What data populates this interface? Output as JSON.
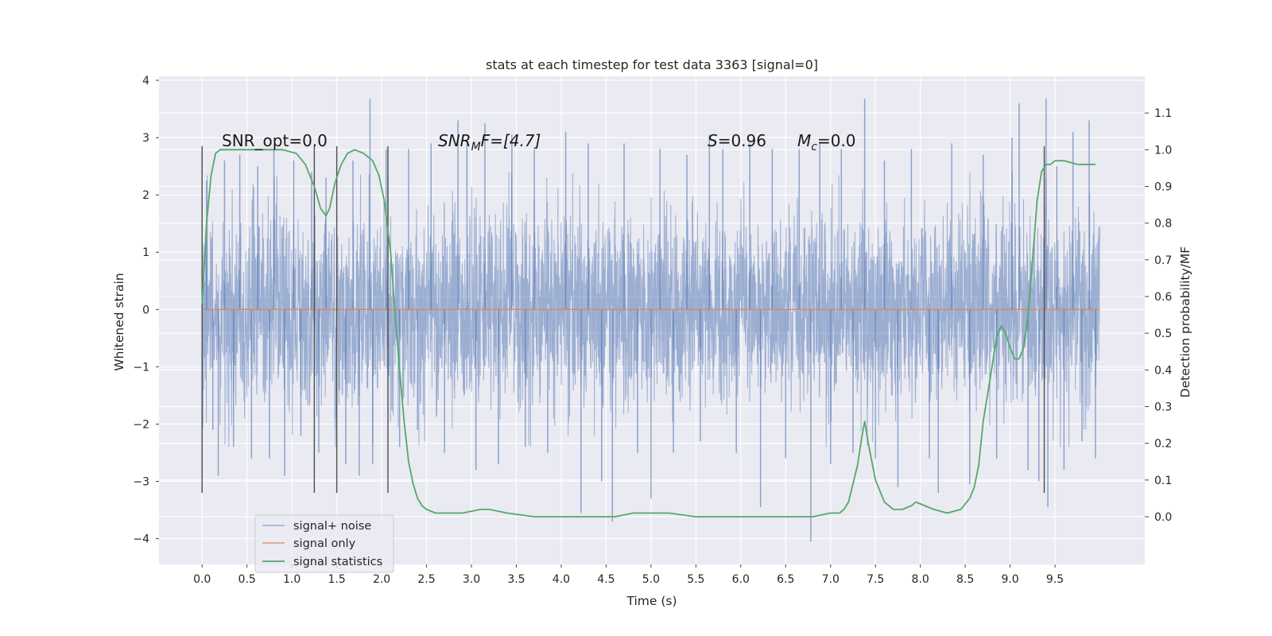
{
  "chart_data": {
    "type": "line",
    "title": "stats at each timestep for test data 3363 [signal=0]",
    "xlabel": "Time (s)",
    "ylabel": "Whitened strain",
    "y2label": "Detection probability/MF",
    "xlim": [
      -0.48,
      10.5
    ],
    "ylim": [
      -4.45,
      4.07
    ],
    "y2lim": [
      -0.13,
      1.2
    ],
    "x_ticks": [
      0.0,
      0.5,
      1.0,
      1.5,
      2.0,
      2.5,
      3.0,
      3.5,
      4.0,
      4.5,
      5.0,
      5.5,
      6.0,
      6.5,
      7.0,
      7.5,
      8.0,
      8.5,
      9.0,
      9.5
    ],
    "x_tick_labels": [
      "0.0",
      "0.5",
      "1.0",
      "1.5",
      "2.0",
      "2.5",
      "3.0",
      "3.5",
      "4.0",
      "4.5",
      "5.0",
      "5.5",
      "6.0",
      "6.5",
      "7.0",
      "7.5",
      "8.0",
      "8.5",
      "9.0",
      "9.5"
    ],
    "y_ticks": [
      -4,
      -3,
      -2,
      -1,
      0,
      1,
      2,
      3,
      4
    ],
    "y_tick_labels": [
      "−4",
      "−3",
      "−2",
      "−1",
      "0",
      "1",
      "2",
      "3",
      "4"
    ],
    "y2_ticks": [
      0.0,
      0.1,
      0.2,
      0.3,
      0.4,
      0.5,
      0.6,
      0.7,
      0.8,
      0.9,
      1.0,
      1.1
    ],
    "y2_tick_labels": [
      "0.0",
      "0.1",
      "0.2",
      "0.3",
      "0.4",
      "0.5",
      "0.6",
      "0.7",
      "0.8",
      "0.9",
      "1.0",
      "1.1"
    ],
    "grid": true,
    "legend_position": "lower-left",
    "annotations": {
      "snr_opt": "SNR_opt=0.0",
      "snr_mf": {
        "prefix": "SNR",
        "sub": "M",
        "suffix": "F=[4.7]"
      },
      "s_stat": {
        "sym": "S",
        "value": "=0.96"
      },
      "mc": {
        "sym": "M",
        "sub": "c",
        "value": "=0.0"
      }
    },
    "vertical_markers_x": [
      0.0,
      1.25,
      1.5,
      2.07,
      9.38
    ],
    "vertical_markers_ylim": [
      -3.2,
      2.85
    ],
    "series": [
      {
        "name": "signal+ noise",
        "color": "#4c72b0",
        "opacity": 0.5,
        "kind": "whitened-noise-trace",
        "axis": "left",
        "x_range": [
          0.0,
          10.0
        ],
        "typical_envelope": [
          -1.5,
          1.5
        ],
        "spikes": [
          {
            "x": 0.05,
            "y": 2.25
          },
          {
            "x": 0.12,
            "y": -2.1
          },
          {
            "x": 0.18,
            "y": -2.9
          },
          {
            "x": 0.25,
            "y": 2.6
          },
          {
            "x": 0.35,
            "y": -2.4
          },
          {
            "x": 0.42,
            "y": 2.7
          },
          {
            "x": 0.55,
            "y": -2.6
          },
          {
            "x": 0.62,
            "y": 2.5
          },
          {
            "x": 0.75,
            "y": -2.6
          },
          {
            "x": 0.8,
            "y": 2.8
          },
          {
            "x": 0.92,
            "y": -2.9
          },
          {
            "x": 1.02,
            "y": 2.6
          },
          {
            "x": 1.1,
            "y": -2.2
          },
          {
            "x": 1.22,
            "y": 2.4
          },
          {
            "x": 1.3,
            "y": -2.5
          },
          {
            "x": 1.38,
            "y": 2.3
          },
          {
            "x": 1.6,
            "y": -2.7
          },
          {
            "x": 1.68,
            "y": 2.6
          },
          {
            "x": 1.75,
            "y": -2.9
          },
          {
            "x": 1.87,
            "y": 3.68
          },
          {
            "x": 1.9,
            "y": -2.7
          },
          {
            "x": 2.05,
            "y": 2.8
          },
          {
            "x": 2.2,
            "y": -2.4
          },
          {
            "x": 2.3,
            "y": 2.8
          },
          {
            "x": 2.4,
            "y": -2.1
          },
          {
            "x": 2.55,
            "y": 2.9
          },
          {
            "x": 2.7,
            "y": -2.5
          },
          {
            "x": 2.85,
            "y": 3.3
          },
          {
            "x": 2.95,
            "y": 2.9
          },
          {
            "x": 3.05,
            "y": -2.8
          },
          {
            "x": 3.15,
            "y": 3.25
          },
          {
            "x": 3.3,
            "y": -2.7
          },
          {
            "x": 3.45,
            "y": 3.05
          },
          {
            "x": 3.6,
            "y": -2.4
          },
          {
            "x": 3.7,
            "y": 2.8
          },
          {
            "x": 3.85,
            "y": -2.5
          },
          {
            "x": 4.05,
            "y": 3.1
          },
          {
            "x": 4.22,
            "y": -3.55
          },
          {
            "x": 4.3,
            "y": 2.9
          },
          {
            "x": 4.45,
            "y": -3.0
          },
          {
            "x": 4.57,
            "y": -3.7
          },
          {
            "x": 4.7,
            "y": 2.9
          },
          {
            "x": 4.85,
            "y": -2.5
          },
          {
            "x": 5.0,
            "y": -3.3
          },
          {
            "x": 5.1,
            "y": 2.8
          },
          {
            "x": 5.25,
            "y": -2.5
          },
          {
            "x": 5.4,
            "y": 2.7
          },
          {
            "x": 5.55,
            "y": -2.3
          },
          {
            "x": 5.65,
            "y": 3.05
          },
          {
            "x": 5.8,
            "y": 2.8
          },
          {
            "x": 5.95,
            "y": -2.5
          },
          {
            "x": 6.1,
            "y": 2.9
          },
          {
            "x": 6.22,
            "y": -3.45
          },
          {
            "x": 6.35,
            "y": 2.8
          },
          {
            "x": 6.5,
            "y": -2.6
          },
          {
            "x": 6.65,
            "y": 2.8
          },
          {
            "x": 6.78,
            "y": -4.05
          },
          {
            "x": 6.88,
            "y": 2.9
          },
          {
            "x": 7.0,
            "y": -2.7
          },
          {
            "x": 7.12,
            "y": 2.8
          },
          {
            "x": 7.25,
            "y": -2.5
          },
          {
            "x": 7.38,
            "y": 3.68
          },
          {
            "x": 7.5,
            "y": -2.6
          },
          {
            "x": 7.6,
            "y": 2.6
          },
          {
            "x": 7.75,
            "y": -3.1
          },
          {
            "x": 7.9,
            "y": 2.8
          },
          {
            "x": 8.1,
            "y": -2.6
          },
          {
            "x": 8.2,
            "y": -3.2
          },
          {
            "x": 8.35,
            "y": 2.9
          },
          {
            "x": 8.55,
            "y": -3.05
          },
          {
            "x": 8.7,
            "y": 2.7
          },
          {
            "x": 8.85,
            "y": -2.6
          },
          {
            "x": 9.02,
            "y": 3.0
          },
          {
            "x": 9.1,
            "y": 3.6
          },
          {
            "x": 9.2,
            "y": -2.8
          },
          {
            "x": 9.32,
            "y": -3.0
          },
          {
            "x": 9.4,
            "y": 3.68
          },
          {
            "x": 9.42,
            "y": -3.45
          },
          {
            "x": 9.52,
            "y": 2.5
          },
          {
            "x": 9.6,
            "y": -2.8
          },
          {
            "x": 9.7,
            "y": 3.1
          },
          {
            "x": 9.8,
            "y": -2.3
          },
          {
            "x": 9.88,
            "y": 3.3
          },
          {
            "x": 9.95,
            "y": -2.6
          }
        ]
      },
      {
        "name": "signal only",
        "color": "#dd8452",
        "axis": "left",
        "x": [
          0.0,
          10.0
        ],
        "y": [
          0.0,
          0.0
        ]
      },
      {
        "name": "signal statistics",
        "color": "#55a868",
        "axis": "right",
        "x": [
          0.0,
          0.05,
          0.1,
          0.15,
          0.2,
          0.3,
          0.5,
          0.7,
          0.9,
          1.05,
          1.15,
          1.25,
          1.32,
          1.38,
          1.42,
          1.48,
          1.55,
          1.62,
          1.7,
          1.8,
          1.9,
          1.97,
          2.03,
          2.1,
          2.15,
          2.2,
          2.25,
          2.3,
          2.35,
          2.4,
          2.45,
          2.5,
          2.6,
          2.7,
          2.9,
          3.1,
          3.2,
          3.4,
          3.7,
          4.0,
          4.4,
          4.6,
          4.8,
          5.0,
          5.2,
          5.5,
          5.7,
          6.0,
          6.3,
          6.6,
          6.8,
          7.0,
          7.1,
          7.15,
          7.2,
          7.3,
          7.35,
          7.38,
          7.42,
          7.5,
          7.6,
          7.7,
          7.8,
          7.9,
          7.95,
          8.05,
          8.15,
          8.3,
          8.45,
          8.55,
          8.6,
          8.65,
          8.7,
          8.78,
          8.85,
          8.9,
          8.95,
          9.0,
          9.05,
          9.1,
          9.15,
          9.2,
          9.25,
          9.3,
          9.35,
          9.4,
          9.45,
          9.5,
          9.6,
          9.75,
          9.85,
          9.95
        ],
        "y": [
          0.58,
          0.8,
          0.93,
          0.99,
          1.0,
          1.0,
          1.0,
          1.0,
          1.0,
          0.99,
          0.96,
          0.9,
          0.84,
          0.82,
          0.84,
          0.91,
          0.96,
          0.99,
          1.0,
          0.99,
          0.97,
          0.93,
          0.86,
          0.72,
          0.55,
          0.4,
          0.26,
          0.15,
          0.09,
          0.05,
          0.03,
          0.02,
          0.01,
          0.01,
          0.01,
          0.02,
          0.02,
          0.01,
          0.0,
          0.0,
          0.0,
          0.0,
          0.01,
          0.01,
          0.01,
          0.0,
          0.0,
          0.0,
          0.0,
          0.0,
          0.0,
          0.01,
          0.01,
          0.02,
          0.04,
          0.14,
          0.22,
          0.26,
          0.2,
          0.1,
          0.04,
          0.02,
          0.02,
          0.03,
          0.04,
          0.03,
          0.02,
          0.01,
          0.02,
          0.05,
          0.08,
          0.14,
          0.26,
          0.38,
          0.49,
          0.52,
          0.5,
          0.46,
          0.43,
          0.43,
          0.46,
          0.55,
          0.7,
          0.86,
          0.94,
          0.96,
          0.96,
          0.97,
          0.97,
          0.96,
          0.96,
          0.96
        ]
      }
    ]
  }
}
